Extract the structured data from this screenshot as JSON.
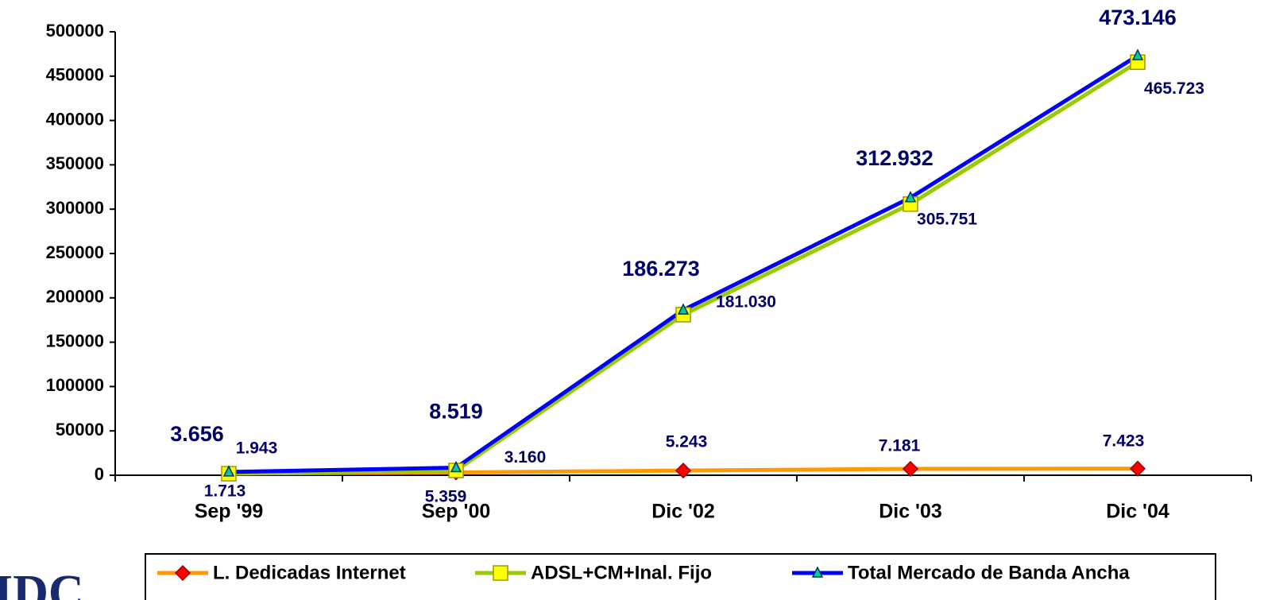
{
  "chart_data": {
    "type": "line",
    "categories": [
      "Sep '99",
      "Sep '00",
      "Dic '02",
      "Dic '03",
      "Dic '04"
    ],
    "series": [
      {
        "name": "L. Dedicadas Internet",
        "color": "#ff9900",
        "marker_color": "#ff0000",
        "marker": "diamond",
        "values": [
          1943,
          3160,
          5243,
          7181,
          7423
        ],
        "value_labels": [
          "1.943",
          "3.160",
          "5.243",
          "7.181",
          "7.423"
        ]
      },
      {
        "name": "ADSL+CM+Inal. Fijo",
        "color": "#99cc00",
        "marker_color": "#ffff00",
        "marker": "square",
        "values": [
          1713,
          5359,
          181030,
          305751,
          465723
        ],
        "value_labels": [
          "1.713",
          "5.359",
          "181.030",
          "305.751",
          "465.723"
        ]
      },
      {
        "name": "Total Mercado de Banda Ancha",
        "color": "#0000ff",
        "marker_color": "#00cc99",
        "marker": "triangle",
        "values": [
          3656,
          8519,
          186273,
          312932,
          473146
        ],
        "value_labels": [
          "3.656",
          "8.519",
          "186.273",
          "312.932",
          "473.146"
        ]
      }
    ],
    "ylim": [
      0,
      500000
    ],
    "yticks": [
      0,
      50000,
      100000,
      150000,
      200000,
      250000,
      300000,
      350000,
      400000,
      450000,
      500000
    ],
    "grid": false,
    "legend": "bottom",
    "logo": "IDC"
  }
}
